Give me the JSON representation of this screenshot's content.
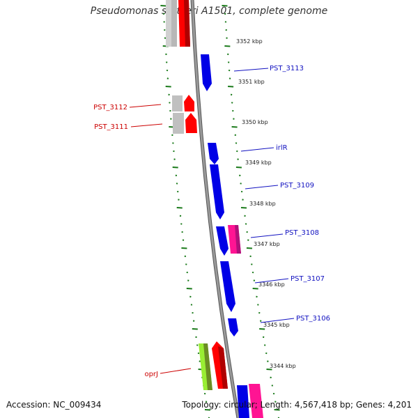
{
  "title": "Pseudomonas stutzeri A1501, complete genome",
  "footer": {
    "accession": "Accession: NC_009434",
    "stats": "Topology: circular; Length: 4,567,418 bp; Genes: 4,201"
  },
  "colors": {
    "backbone": "#8c8c8c",
    "tick": "#1a7a1a",
    "forward_cds": "#0000e6",
    "reverse_cds": "#ff0000",
    "other_gene": "#b8b8b8",
    "rna": "#ff1493",
    "misc": "#99ee33",
    "label_forward": "#1010c0",
    "label_reverse": "#cc0000"
  },
  "kbp_labels": [
    "3352 kbp",
    "3351 kbp",
    "3350 kbp",
    "3349 kbp",
    "3348 kbp",
    "3347 kbp",
    "3346 kbp",
    "3345 kbp",
    "3344 kbp"
  ],
  "gene_labels": {
    "forward": [
      "PST_3113",
      "irlR",
      "PST_3109",
      "PST_3108",
      "PST_3107",
      "PST_3106"
    ],
    "reverse": [
      "PST_3112",
      "PST_3111",
      "oprJ"
    ]
  }
}
